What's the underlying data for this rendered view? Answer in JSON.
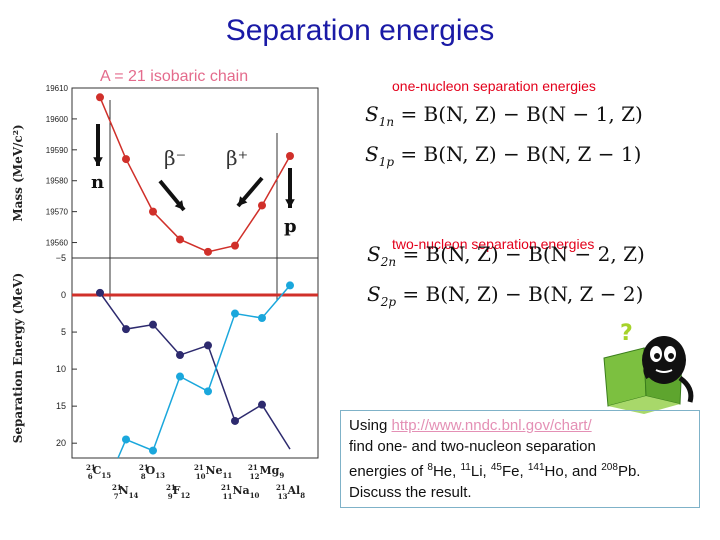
{
  "title": "Separation energies",
  "chain_label": "A = 21 isobaric chain",
  "one_nucleon_heading": "one-nucleon separation energies",
  "two_nucleon_heading": "two-nucleon separation energies",
  "equations": {
    "s1n": {
      "sub": "1n",
      "rhs": "= B(N, Z) − B(N − 1, Z)"
    },
    "s1p": {
      "sub": "1p",
      "rhs": "= B(N, Z) − B(N, Z − 1)"
    },
    "s2n": {
      "sub": "2n",
      "rhs": "= B(N, Z) − B(N − 2, Z)"
    },
    "s2p": {
      "sub": "2p",
      "rhs": "= B(N, Z) − B(N, Z − 2)"
    }
  },
  "task": {
    "using": "Using ",
    "link": "http://www.nndc.bnl.gov/chart/",
    "line2": "find one- and two-nucleon separation",
    "energies_of": "energies of ",
    "nuclides": [
      {
        "a": "8",
        "sym": "He",
        "after": ", "
      },
      {
        "a": "11",
        "sym": "Li",
        "after": ", "
      },
      {
        "a": "45",
        "sym": "Fe",
        "after": ", "
      },
      {
        "a": "141",
        "sym": "Ho",
        "after": ", and "
      },
      {
        "a": "208",
        "sym": "Pb",
        "after": "."
      }
    ],
    "line4": "Discuss the result."
  },
  "colors": {
    "title": "#1a1aa6",
    "mass_series": "#d0302a",
    "neutron_series": "#2d2a6e",
    "proton_series": "#1aa7dc",
    "zero_line": "#d0302a"
  },
  "chart_data": [
    {
      "type": "line",
      "ylabel": "Mass (MeV/c²)",
      "ylim": [
        19555,
        19610
      ],
      "yticks": [
        19560,
        19570,
        19580,
        19590,
        19600,
        19610
      ],
      "x": [
        "²¹₆C₁₅",
        "²¹₇N₁₄",
        "²¹₈O₁₃",
        "²¹₉F₁₂",
        "²¹₁₀Ne₁₁",
        "²¹₁₁Na₁₀",
        "²¹₁₂Mg₉",
        "²¹₁₃Al₈"
      ],
      "values": [
        19607,
        19587,
        19570,
        19561,
        19557,
        19559,
        19572,
        19588
      ],
      "annotations": [
        "n",
        "β⁻",
        "β⁺",
        "p"
      ]
    },
    {
      "type": "line",
      "ylabel": "Separation Energy (MeV)",
      "ylim": [
        -5,
        22
      ],
      "y_inverted": true,
      "yticks": [
        -5,
        0,
        5,
        10,
        15,
        20
      ],
      "x": [
        "²¹₆C₁₅",
        "²¹₇N₁₄",
        "²¹₈O₁₃",
        "²¹₉F₁₂",
        "²¹₁₀Ne₁₁",
        "²¹₁₁Na₁₀",
        "²¹₁₂Mg₉",
        "²¹₁₃Al₈"
      ],
      "series": [
        {
          "values": [
            -0.3,
            4.6,
            4.0,
            8.1,
            6.8,
            17.0,
            14.8,
            20.8
          ]
        },
        {
          "values": [
            null,
            19.5,
            21.0,
            11.0,
            13.0,
            2.5,
            3.1,
            -1.3
          ]
        }
      ],
      "grid": false
    }
  ]
}
